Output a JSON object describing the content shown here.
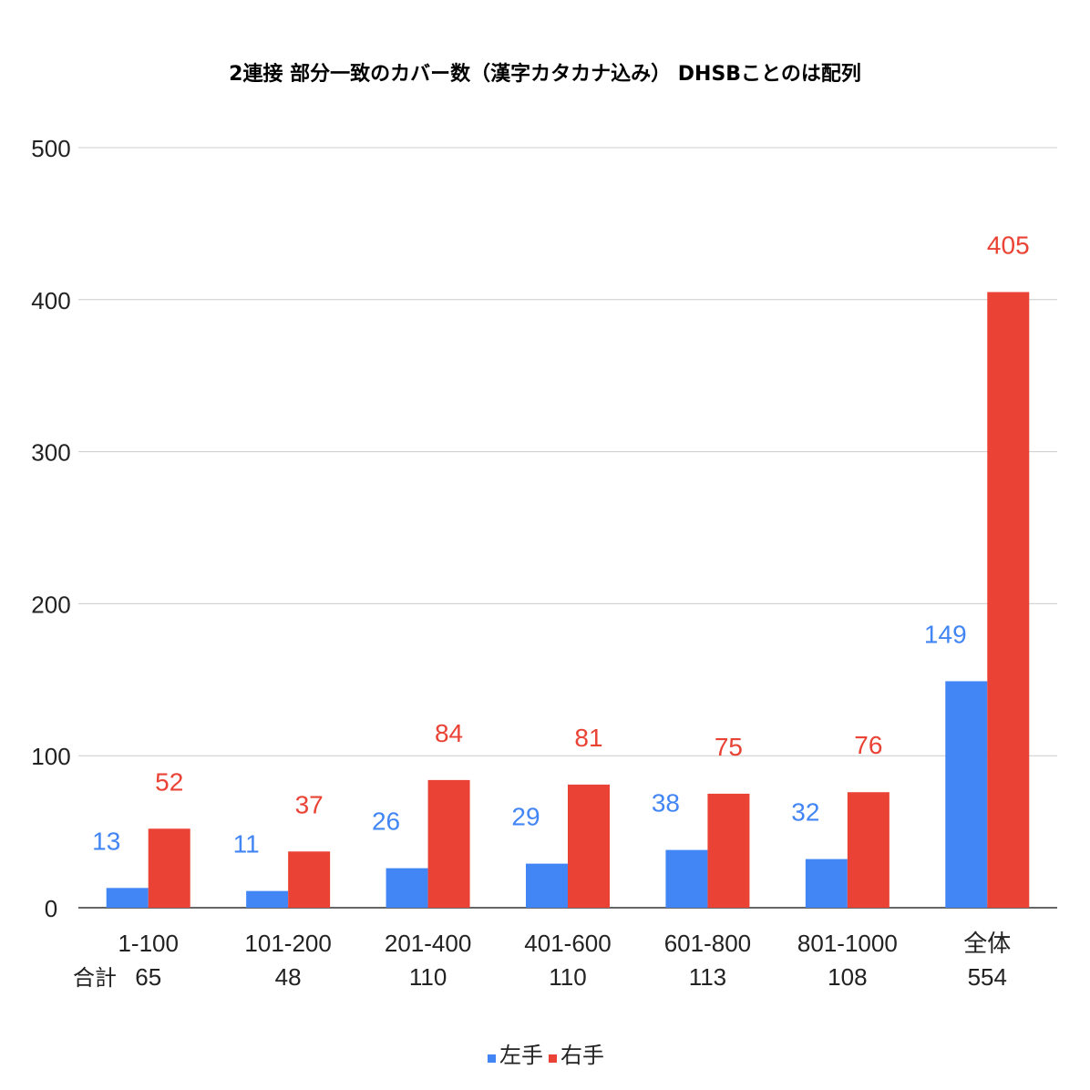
{
  "chart_data": {
    "type": "bar",
    "title": "2連接 部分一致のカバー数（漢字カタカナ込み） DHSBことのは配列",
    "categories": [
      "1-100",
      "101-200",
      "201-400",
      "401-600",
      "601-800",
      "801-1000",
      "全体"
    ],
    "totals_label": "合計",
    "totals": [
      "65",
      "48",
      "110",
      "110",
      "113",
      "108",
      "554"
    ],
    "series": [
      {
        "name": "左手",
        "color": "#4285f4",
        "values": [
          13,
          11,
          26,
          29,
          38,
          32,
          149
        ]
      },
      {
        "name": "右手",
        "color": "#ea4335",
        "values": [
          52,
          37,
          84,
          81,
          75,
          76,
          405
        ]
      }
    ],
    "ylim": [
      0,
      500
    ],
    "yticks": [
      0,
      100,
      200,
      300,
      400,
      500
    ],
    "grid": true,
    "legend_position": "bottom"
  }
}
